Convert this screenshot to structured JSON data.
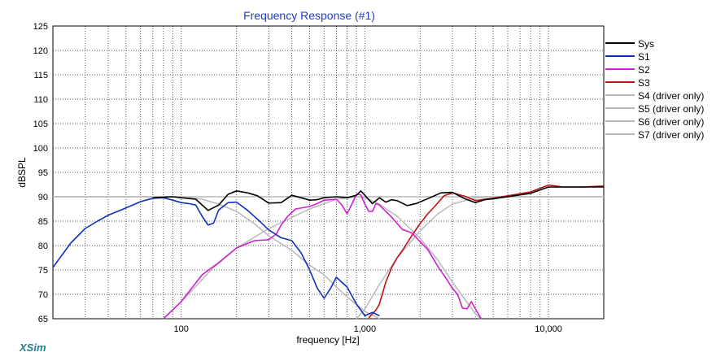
{
  "chart_data": {
    "type": "line",
    "title": "Frequency Response (#1)",
    "xlabel": "frequency [Hz]",
    "ylabel": "dBSPL",
    "xscale": "log",
    "xlim": [
      20,
      20000
    ],
    "ylim": [
      65,
      125
    ],
    "x_tick_labels": [
      {
        "value": 100,
        "label": "100"
      },
      {
        "value": 1000,
        "label": "1,000"
      },
      {
        "value": 10000,
        "label": "10,000"
      }
    ],
    "y_ticks": [
      65,
      70,
      75,
      80,
      85,
      90,
      95,
      100,
      105,
      110,
      115,
      120,
      125
    ],
    "grid": true,
    "legend_position": "top-right",
    "series": [
      {
        "name": "Sys",
        "color": "#000000",
        "points": [
          [
            70,
            89.8
          ],
          [
            90,
            90
          ],
          [
            100,
            89.8
          ],
          [
            120,
            89.5
          ],
          [
            140,
            87.2
          ],
          [
            160,
            88.3
          ],
          [
            180,
            90.5
          ],
          [
            200,
            91.2
          ],
          [
            230,
            90.8
          ],
          [
            260,
            90.2
          ],
          [
            300,
            88.7
          ],
          [
            350,
            88.8
          ],
          [
            400,
            90.3
          ],
          [
            450,
            89.8
          ],
          [
            500,
            89.3
          ],
          [
            550,
            89.4
          ],
          [
            600,
            89.8
          ],
          [
            700,
            90
          ],
          [
            800,
            89.8
          ],
          [
            900,
            90.3
          ],
          [
            950,
            91.2
          ],
          [
            1000,
            90.3
          ],
          [
            1100,
            88.6
          ],
          [
            1200,
            89.8
          ],
          [
            1300,
            88.9
          ],
          [
            1400,
            89.4
          ],
          [
            1500,
            89.2
          ],
          [
            1700,
            88.2
          ],
          [
            1900,
            88.6
          ],
          [
            2200,
            89.6
          ],
          [
            2600,
            90.8
          ],
          [
            3000,
            90.9
          ],
          [
            3500,
            89.6
          ],
          [
            4000,
            88.8
          ],
          [
            4500,
            89.4
          ],
          [
            5000,
            89.6
          ],
          [
            6000,
            90
          ],
          [
            8000,
            90.7
          ],
          [
            10000,
            92
          ],
          [
            12000,
            92
          ],
          [
            20000,
            92
          ]
        ]
      },
      {
        "name": "S1",
        "color": "#1030c0",
        "points": [
          [
            20,
            75.5
          ],
          [
            25,
            80.5
          ],
          [
            30,
            83.5
          ],
          [
            35,
            85
          ],
          [
            40,
            86.2
          ],
          [
            50,
            87.7
          ],
          [
            60,
            89
          ],
          [
            70,
            89.7
          ],
          [
            80,
            89.8
          ],
          [
            90,
            89.3
          ],
          [
            100,
            88.8
          ],
          [
            110,
            88.6
          ],
          [
            120,
            88.3
          ],
          [
            130,
            86
          ],
          [
            140,
            84.2
          ],
          [
            150,
            84.6
          ],
          [
            160,
            87.3
          ],
          [
            180,
            88.8
          ],
          [
            200,
            88.9
          ],
          [
            230,
            87.2
          ],
          [
            260,
            85.4
          ],
          [
            300,
            83.2
          ],
          [
            350,
            81.6
          ],
          [
            400,
            81
          ],
          [
            450,
            78.5
          ],
          [
            500,
            75
          ],
          [
            550,
            71.3
          ],
          [
            600,
            69.2
          ],
          [
            650,
            71.2
          ],
          [
            700,
            73.5
          ],
          [
            800,
            71.5
          ],
          [
            900,
            68
          ],
          [
            1000,
            65.6
          ],
          [
            1100,
            66.3
          ],
          [
            1200,
            65.6
          ]
        ]
      },
      {
        "name": "S2",
        "color": "#d020d0",
        "points": [
          [
            80,
            65
          ],
          [
            100,
            68.5
          ],
          [
            130,
            74
          ],
          [
            160,
            76.5
          ],
          [
            200,
            79.5
          ],
          [
            250,
            81
          ],
          [
            300,
            81.2
          ],
          [
            330,
            82.4
          ],
          [
            350,
            84.2
          ],
          [
            380,
            86
          ],
          [
            420,
            87.5
          ],
          [
            500,
            88
          ],
          [
            550,
            88.6
          ],
          [
            600,
            89.3
          ],
          [
            700,
            89.5
          ],
          [
            750,
            88.3
          ],
          [
            800,
            86.5
          ],
          [
            850,
            88.5
          ],
          [
            900,
            90.5
          ],
          [
            950,
            90.4
          ],
          [
            1000,
            88.5
          ],
          [
            1050,
            87
          ],
          [
            1100,
            87
          ],
          [
            1150,
            88.6
          ],
          [
            1200,
            88.3
          ],
          [
            1400,
            85.8
          ],
          [
            1600,
            83.3
          ],
          [
            1800,
            82.6
          ],
          [
            2000,
            80.8
          ],
          [
            2200,
            79.2
          ],
          [
            2500,
            75.7
          ],
          [
            2800,
            73
          ],
          [
            3000,
            71.2
          ],
          [
            3200,
            70
          ],
          [
            3400,
            67.2
          ],
          [
            3600,
            67
          ],
          [
            3800,
            68.5
          ],
          [
            4000,
            67
          ],
          [
            4300,
            65
          ]
        ]
      },
      {
        "name": "S3",
        "color": "#c01010",
        "points": [
          [
            1050,
            65.2
          ],
          [
            1100,
            66
          ],
          [
            1150,
            66.8
          ],
          [
            1200,
            68
          ],
          [
            1300,
            72.5
          ],
          [
            1400,
            75.5
          ],
          [
            1500,
            77.5
          ],
          [
            1600,
            79
          ],
          [
            1800,
            82
          ],
          [
            2000,
            84.5
          ],
          [
            2200,
            86.5
          ],
          [
            2400,
            88
          ],
          [
            2700,
            90.2
          ],
          [
            3000,
            90.8
          ],
          [
            3500,
            90.1
          ],
          [
            4000,
            89.2
          ],
          [
            4500,
            89.5
          ],
          [
            5000,
            89.7
          ],
          [
            6000,
            90.2
          ],
          [
            8000,
            91
          ],
          [
            10000,
            92.4
          ],
          [
            12000,
            92
          ],
          [
            15000,
            92
          ],
          [
            20000,
            92.2
          ]
        ]
      },
      {
        "name": "S4 (driver only)",
        "color": "#b8b8b8",
        "points": [
          [
            20,
            90
          ],
          [
            100,
            90
          ],
          [
            130,
            89.5
          ],
          [
            160,
            88.5
          ],
          [
            200,
            87
          ],
          [
            250,
            84.5
          ],
          [
            300,
            82
          ],
          [
            400,
            79
          ],
          [
            500,
            76
          ],
          [
            600,
            74
          ],
          [
            700,
            71.5
          ],
          [
            800,
            69.5
          ],
          [
            1000,
            66.5
          ],
          [
            1200,
            65
          ]
        ]
      },
      {
        "name": "S5 (driver only)",
        "color": "#b8b8b8",
        "points": [
          [
            80,
            65
          ],
          [
            100,
            68.5
          ],
          [
            150,
            75.5
          ],
          [
            200,
            79.5
          ],
          [
            300,
            83.5
          ],
          [
            500,
            87.5
          ],
          [
            700,
            89.5
          ],
          [
            900,
            90
          ],
          [
            1000,
            89.8
          ],
          [
            1200,
            88.5
          ],
          [
            1500,
            86
          ],
          [
            2000,
            81.5
          ],
          [
            2500,
            77
          ],
          [
            3000,
            72.5
          ],
          [
            3500,
            69
          ],
          [
            4000,
            66
          ],
          [
            4300,
            65
          ]
        ]
      },
      {
        "name": "S6 (driver only)",
        "color": "#b8b8b8",
        "points": [
          [
            900,
            65
          ],
          [
            1000,
            67
          ],
          [
            1200,
            72
          ],
          [
            1500,
            77.5
          ],
          [
            2000,
            83
          ],
          [
            2500,
            86.5
          ],
          [
            3000,
            88.5
          ],
          [
            4000,
            89.8
          ],
          [
            5000,
            90
          ],
          [
            20000,
            90
          ]
        ]
      },
      {
        "name": "S7 (driver only)",
        "color": "#b8b8b8",
        "points": [
          [
            20,
            90
          ],
          [
            20000,
            90
          ]
        ]
      }
    ]
  },
  "branding": {
    "label": "XSim"
  }
}
